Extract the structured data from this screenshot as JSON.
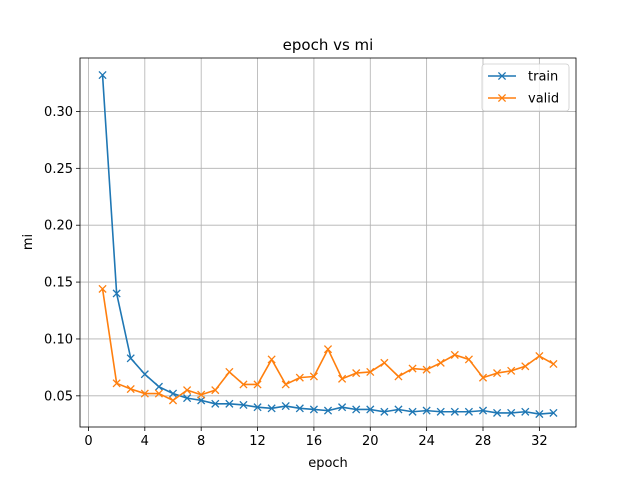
{
  "chart_data": {
    "type": "line",
    "title": "epoch vs mi",
    "xlabel": "epoch",
    "ylabel": "mi",
    "xlim": [
      -0.6,
      34.6
    ],
    "ylim": [
      0.0226,
      0.347
    ],
    "grid": true,
    "legend_position": "top-right",
    "xticks": [
      "0",
      "4",
      "8",
      "12",
      "16",
      "20",
      "24",
      "28",
      "32"
    ],
    "yticks": [
      "0.05",
      "0.10",
      "0.15",
      "0.20",
      "0.25",
      "0.30"
    ],
    "x": [
      1,
      2,
      3,
      4,
      5,
      6,
      7,
      8,
      9,
      10,
      11,
      12,
      13,
      14,
      15,
      16,
      17,
      18,
      19,
      20,
      21,
      22,
      23,
      24,
      25,
      26,
      27,
      28,
      29,
      30,
      31,
      32,
      33
    ],
    "series": [
      {
        "name": "train",
        "color": "#1f77b4",
        "marker": "x",
        "values": [
          0.332,
          0.14,
          0.083,
          0.069,
          0.058,
          0.052,
          0.048,
          0.046,
          0.043,
          0.043,
          0.042,
          0.04,
          0.039,
          0.041,
          0.039,
          0.038,
          0.037,
          0.04,
          0.038,
          0.038,
          0.036,
          0.038,
          0.036,
          0.037,
          0.036,
          0.036,
          0.036,
          0.037,
          0.035,
          0.035,
          0.036,
          0.034,
          0.035
        ]
      },
      {
        "name": "valid",
        "color": "#ff7f0e",
        "marker": "x",
        "values": [
          0.144,
          0.061,
          0.056,
          0.052,
          0.052,
          0.046,
          0.055,
          0.051,
          0.055,
          0.071,
          0.06,
          0.06,
          0.082,
          0.06,
          0.066,
          0.067,
          0.091,
          0.065,
          0.07,
          0.071,
          0.079,
          0.067,
          0.074,
          0.073,
          0.079,
          0.086,
          0.082,
          0.066,
          0.07,
          0.072,
          0.076,
          0.085,
          0.078
        ]
      }
    ]
  }
}
